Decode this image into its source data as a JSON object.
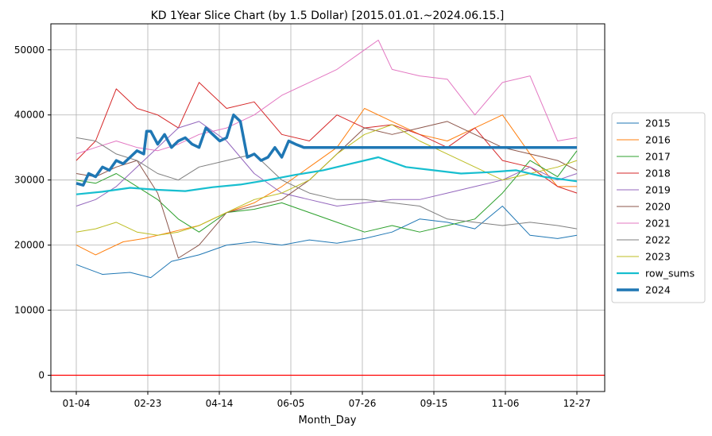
{
  "chart_data": {
    "type": "line",
    "title": "KD 1Year Slice Chart (by 1.5 Dollar) [2015.01.01.~2024.06.15.]",
    "xlabel": "Month_Day",
    "ylabel": "",
    "x_ticks": [
      "01-04",
      "02-23",
      "04-14",
      "06-05",
      "07-26",
      "09-15",
      "11-06",
      "12-27"
    ],
    "x_range": [
      1,
      364
    ],
    "ylim": [
      -2500,
      54000
    ],
    "y_ticks": [
      0,
      10000,
      20000,
      30000,
      40000,
      50000
    ],
    "grid": true,
    "legend_position": "center-right",
    "reference_line": {
      "y": 0,
      "color": "#ff0000"
    },
    "series": [
      {
        "name": "2015",
        "color": "#1f77b4",
        "width": 1,
        "x": [
          1,
          20,
          40,
          55,
          70,
          90,
          110,
          130,
          150,
          170,
          190,
          210,
          230,
          250,
          270,
          290,
          310,
          330,
          350,
          364
        ],
        "y": [
          17000,
          15500,
          15800,
          15000,
          17500,
          18500,
          20000,
          20500,
          20000,
          20800,
          20300,
          21000,
          22000,
          24000,
          23500,
          22500,
          26000,
          21500,
          21000,
          21500
        ]
      },
      {
        "name": "2016",
        "color": "#ff7f0e",
        "width": 1,
        "x": [
          1,
          15,
          35,
          50,
          70,
          90,
          110,
          130,
          150,
          170,
          190,
          210,
          230,
          250,
          270,
          290,
          310,
          330,
          350,
          364
        ],
        "y": [
          20000,
          18500,
          20500,
          21000,
          22000,
          23000,
          25000,
          26500,
          29000,
          32000,
          35000,
          41000,
          39000,
          37000,
          36000,
          38000,
          40000,
          34000,
          29000,
          29000
        ]
      },
      {
        "name": "2017",
        "color": "#2ca02c",
        "width": 1,
        "x": [
          1,
          15,
          30,
          45,
          60,
          75,
          90,
          110,
          130,
          150,
          170,
          190,
          210,
          230,
          250,
          270,
          290,
          310,
          330,
          350,
          364
        ],
        "y": [
          30000,
          29500,
          31000,
          29000,
          27000,
          24000,
          22000,
          25000,
          25500,
          26500,
          25000,
          23500,
          22000,
          23000,
          22000,
          23000,
          24000,
          28000,
          33000,
          30500,
          34500
        ]
      },
      {
        "name": "2018",
        "color": "#d62728",
        "width": 1,
        "x": [
          1,
          15,
          30,
          45,
          60,
          75,
          90,
          110,
          130,
          150,
          170,
          190,
          210,
          230,
          250,
          270,
          290,
          310,
          330,
          350,
          364
        ],
        "y": [
          33000,
          36000,
          44000,
          41000,
          40000,
          38000,
          45000,
          41000,
          42000,
          37000,
          36000,
          40000,
          38000,
          38500,
          37000,
          35000,
          38000,
          33000,
          32000,
          29000,
          28000
        ]
      },
      {
        "name": "2019",
        "color": "#9467bd",
        "width": 1,
        "x": [
          1,
          15,
          30,
          45,
          60,
          75,
          90,
          110,
          130,
          150,
          170,
          190,
          210,
          230,
          250,
          270,
          290,
          310,
          330,
          350,
          364
        ],
        "y": [
          26000,
          27000,
          29000,
          32000,
          35000,
          38000,
          39000,
          36000,
          31000,
          28000,
          27000,
          26000,
          26500,
          27000,
          27000,
          28000,
          29000,
          30000,
          32000,
          30000,
          31000
        ]
      },
      {
        "name": "2020",
        "color": "#8c564b",
        "width": 1,
        "x": [
          1,
          15,
          30,
          45,
          60,
          75,
          90,
          110,
          130,
          150,
          170,
          190,
          210,
          230,
          250,
          270,
          290,
          310,
          330,
          350,
          364
        ],
        "y": [
          31000,
          30500,
          32000,
          33000,
          28000,
          18000,
          20000,
          25000,
          26000,
          27000,
          30000,
          34000,
          38000,
          37000,
          38000,
          39000,
          37000,
          35000,
          34000,
          33000,
          31500
        ]
      },
      {
        "name": "2021",
        "color": "#e377c2",
        "width": 1,
        "x": [
          1,
          15,
          30,
          45,
          60,
          75,
          90,
          110,
          130,
          150,
          170,
          190,
          210,
          220,
          230,
          250,
          270,
          290,
          310,
          330,
          350,
          364
        ],
        "y": [
          34000,
          35000,
          36000,
          35000,
          34500,
          35500,
          37000,
          38000,
          40000,
          43000,
          45000,
          47000,
          50000,
          51500,
          47000,
          46000,
          45500,
          40000,
          45000,
          46000,
          36000,
          36500
        ]
      },
      {
        "name": "2022",
        "color": "#7f7f7f",
        "width": 1,
        "x": [
          1,
          15,
          30,
          45,
          60,
          75,
          90,
          110,
          130,
          150,
          170,
          190,
          210,
          230,
          250,
          270,
          290,
          310,
          330,
          350,
          364
        ],
        "y": [
          36500,
          36000,
          34000,
          33000,
          31000,
          30000,
          32000,
          33000,
          34000,
          30000,
          28000,
          27000,
          27000,
          26500,
          26000,
          24000,
          23500,
          23000,
          23500,
          23000,
          22500
        ]
      },
      {
        "name": "2023",
        "color": "#bcbd22",
        "width": 1,
        "x": [
          1,
          15,
          30,
          45,
          60,
          75,
          90,
          110,
          130,
          150,
          170,
          190,
          210,
          230,
          250,
          270,
          290,
          310,
          330,
          350,
          364
        ],
        "y": [
          22000,
          22500,
          23500,
          22000,
          21500,
          22000,
          23000,
          25000,
          27000,
          28000,
          30000,
          34000,
          37000,
          38500,
          36000,
          34000,
          32000,
          30000,
          31000,
          32000,
          33000
        ]
      },
      {
        "name": "row_sums",
        "color": "#17becf",
        "width": 2.2,
        "x": [
          1,
          20,
          40,
          60,
          80,
          100,
          120,
          140,
          160,
          180,
          200,
          220,
          240,
          260,
          280,
          300,
          320,
          340,
          364
        ],
        "y": [
          27800,
          28200,
          28800,
          28500,
          28300,
          28900,
          29300,
          30000,
          30800,
          31500,
          32500,
          33500,
          32000,
          31500,
          31000,
          31200,
          31500,
          30500,
          29800
        ]
      },
      {
        "name": "2024",
        "color": "#1f77b4",
        "width": 3.5,
        "x": [
          1,
          6,
          10,
          15,
          20,
          25,
          30,
          35,
          40,
          45,
          50,
          52,
          55,
          60,
          65,
          70,
          75,
          80,
          85,
          90,
          95,
          100,
          105,
          110,
          115,
          120,
          125,
          130,
          135,
          140,
          145,
          150,
          155,
          160,
          166,
          170,
          364
        ],
        "y": [
          29500,
          29200,
          31000,
          30500,
          32000,
          31500,
          33000,
          32500,
          33500,
          34500,
          34000,
          37500,
          37500,
          35500,
          37000,
          35000,
          36000,
          36500,
          35500,
          35000,
          38000,
          37000,
          36000,
          36500,
          40000,
          39000,
          33500,
          34000,
          33000,
          33500,
          35000,
          33500,
          36000,
          35500,
          35000,
          35000,
          35000
        ]
      }
    ]
  }
}
